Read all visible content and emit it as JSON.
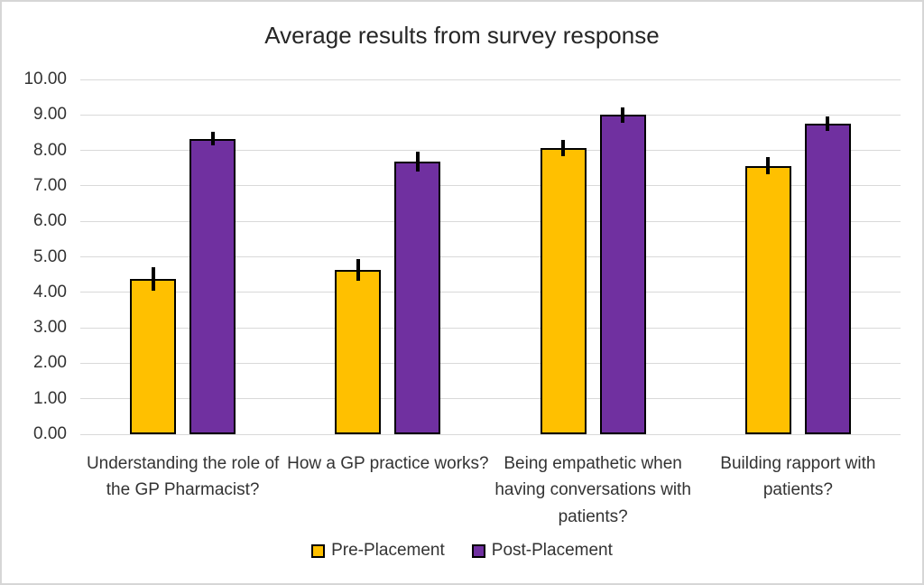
{
  "chart_data": {
    "type": "bar",
    "title": "Average results from survey response",
    "categories": [
      "Understanding the role of the GP Pharmacist?",
      "How a GP practice works?",
      "Being empathetic when having conversations with patients?",
      "Building rapport with patients?"
    ],
    "series": [
      {
        "name": "Pre-Placement",
        "color": "#FFC000",
        "values": [
          4.37,
          4.63,
          8.07,
          7.57
        ],
        "errors": [
          0.33,
          0.3,
          0.23,
          0.25
        ]
      },
      {
        "name": "Post-Placement",
        "color": "#7030A0",
        "values": [
          8.33,
          7.69,
          9.0,
          8.75
        ],
        "errors": [
          0.2,
          0.28,
          0.22,
          0.2
        ]
      }
    ],
    "ylim": [
      0,
      10
    ],
    "ytick_step": 1,
    "ytick_labels": [
      "10.00",
      "9.00",
      "8.00",
      "7.00",
      "6.00",
      "5.00",
      "4.00",
      "3.00",
      "2.00",
      "1.00",
      "0.00"
    ],
    "xlabel": "",
    "ylabel": "",
    "grid": true,
    "legend_position": "bottom",
    "error_bar_color": "#000000",
    "bar_outline_color": "#000000",
    "gridline_color": "#d9d9d9",
    "frame_border_color": "#d6d6d6"
  }
}
